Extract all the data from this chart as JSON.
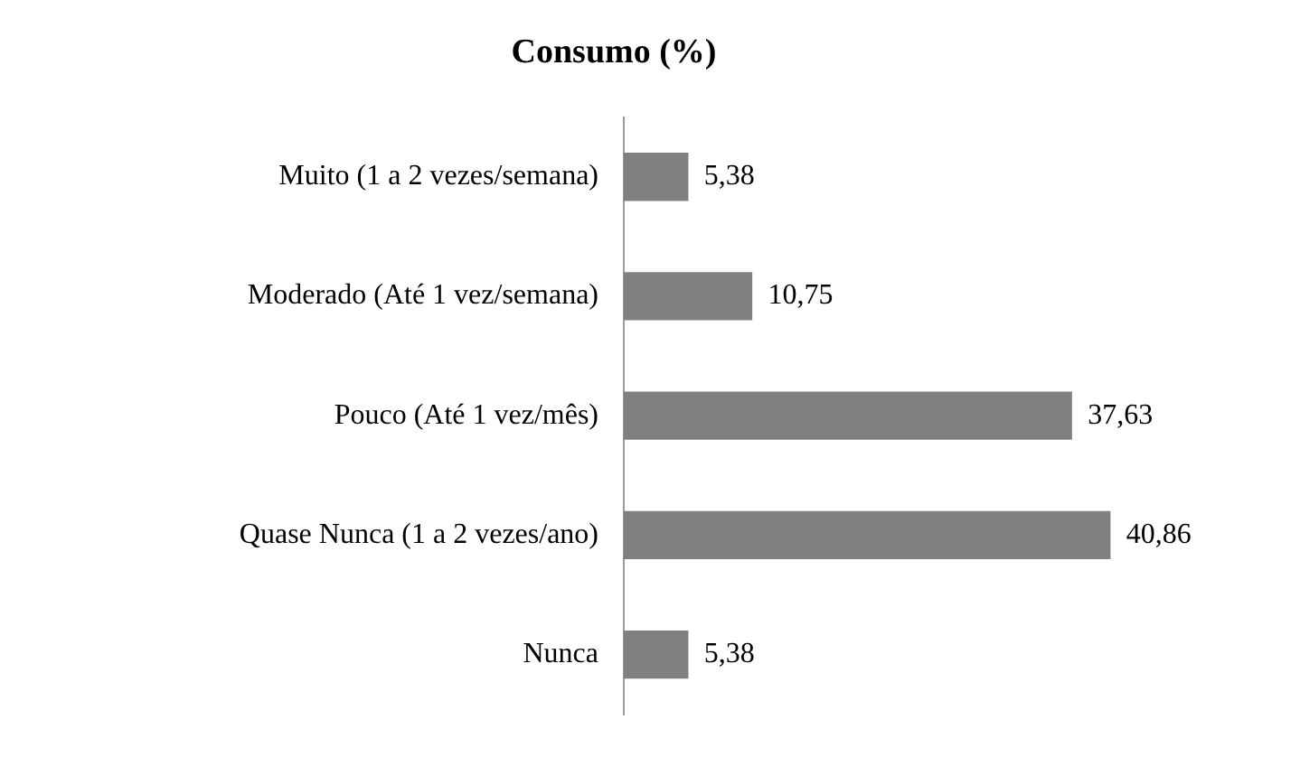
{
  "chart_data": {
    "type": "bar",
    "orientation": "horizontal",
    "title": "Consumo (%)",
    "categories": [
      "Muito (1 a 2 vezes/semana)",
      "Moderado (Até 1 vez/semana)",
      "Pouco (Até 1 vez/mês)",
      "Quase Nunca (1 a 2 vezes/ano)",
      "Nunca"
    ],
    "values": [
      5.38,
      10.75,
      37.63,
      40.86,
      5.38
    ],
    "value_labels": [
      "5,38",
      "10,75",
      "37,63",
      "40,86",
      "5,38"
    ],
    "color": "#808080",
    "legend": false
  }
}
